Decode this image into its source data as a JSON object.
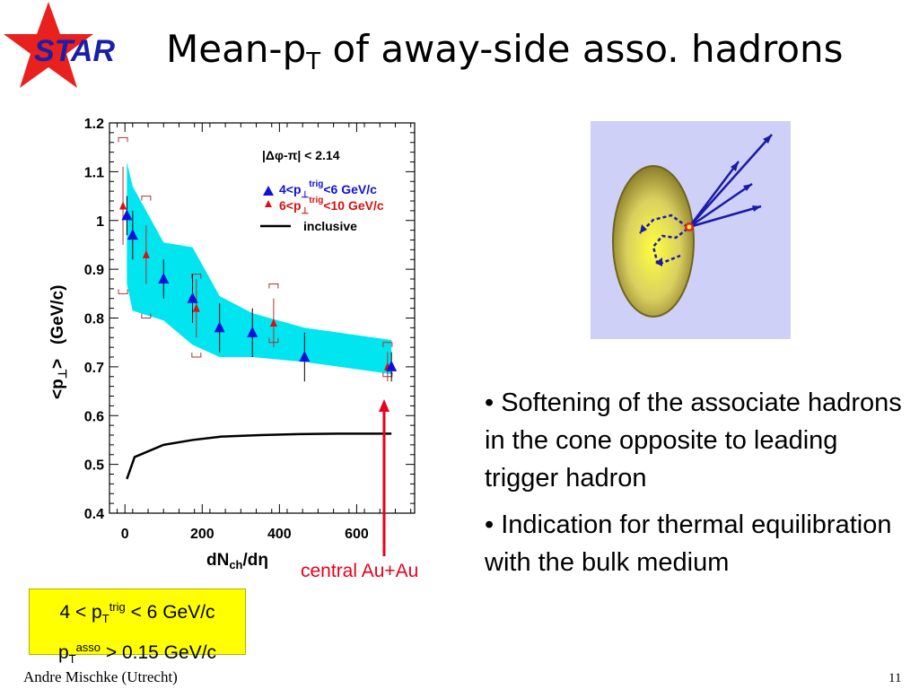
{
  "logo": {
    "text": "STAR",
    "star_color": "#e8201e",
    "text_color": "#1a1fa8"
  },
  "title": {
    "main": "Mean-p",
    "sub": "T",
    "rest": " of away-side asso. hadrons"
  },
  "chart_data": {
    "type": "scatter",
    "xlabel_main": "dN",
    "xlabel_sub": "ch",
    "xlabel_rest": "/dη",
    "ylabel_main": "<p",
    "ylabel_sub": "⊥",
    "ylabel_rest": ">   (GeV/c)",
    "xlim": [
      -40,
      750
    ],
    "ylim": [
      0.4,
      1.2
    ],
    "xticks": [
      0,
      200,
      400,
      600
    ],
    "xtick_labels": [
      "0",
      "200",
      "400",
      "600"
    ],
    "yticks": [
      0.4,
      0.5,
      0.6,
      0.7,
      0.8,
      0.9,
      1.0,
      1.1,
      1.2
    ],
    "ytick_labels": [
      "0.4",
      "0.5",
      "0.6",
      "0.7",
      "0.8",
      "0.9",
      "1",
      "1.1",
      "1.2"
    ],
    "legend_header": "|Δφ-π| < 2.14",
    "series": [
      {
        "name": "4<p⊥trig<6 GeV/c",
        "name_main": "4<p",
        "name_sub": "⊥",
        "name_sup": "trig",
        "name_rest": "<6 GeV/c",
        "color": "#1010d8",
        "marker": "triangle-large",
        "x": [
          5,
          20,
          100,
          175,
          245,
          330,
          465,
          690
        ],
        "y": [
          1.01,
          0.97,
          0.88,
          0.84,
          0.78,
          0.77,
          0.72,
          0.7
        ],
        "err": [
          0.04,
          0.05,
          0.04,
          0.05,
          0.05,
          0.05,
          0.05,
          0.03
        ]
      },
      {
        "name": "6<p⊥trig<10 GeV/c",
        "name_main": "6<p",
        "name_sub": "⊥",
        "name_sup": "trig",
        "name_rest": "<10 GeV/c",
        "color": "#d81010",
        "marker": "triangle-small",
        "x": [
          -5,
          55,
          185,
          385,
          680
        ],
        "y": [
          1.03,
          0.93,
          0.82,
          0.79,
          0.7
        ],
        "err": [
          0.08,
          0.06,
          0.06,
          0.05,
          0.03
        ],
        "sys_lo": [
          0.85,
          0.8,
          0.72,
          0.75,
          0.68
        ],
        "sys_hi": [
          1.17,
          1.05,
          0.89,
          0.87,
          0.75
        ]
      },
      {
        "name": "inclusive",
        "color": "#000000",
        "type": "line",
        "x": [
          5,
          25,
          100,
          175,
          250,
          350,
          450,
          550,
          690
        ],
        "y": [
          0.47,
          0.515,
          0.54,
          0.55,
          0.557,
          0.56,
          0.562,
          0.563,
          0.563
        ]
      }
    ],
    "band": {
      "color": "#00e5f0",
      "x": [
        5,
        20,
        100,
        175,
        245,
        330,
        465,
        690
      ],
      "upper": [
        1.12,
        1.07,
        0.955,
        0.945,
        0.845,
        0.81,
        0.78,
        0.755
      ],
      "lower": [
        0.87,
        0.815,
        0.795,
        0.745,
        0.72,
        0.72,
        0.71,
        0.685
      ]
    }
  },
  "callout": {
    "text": "central Au+Au",
    "color": "#e8001c"
  },
  "diagram": {
    "bg": "#cfd0f7"
  },
  "bullets": [
    "• Softening of the associate hadrons in the cone opposite to leading trigger hadron",
    "• Indication for thermal equilibration with the bulk medium"
  ],
  "note": {
    "line1_main": "4 < p",
    "line1_sub": "T",
    "line1_sup": "trig",
    "line1_rest": " < 6 GeV/c",
    "line2_main": "p",
    "line2_sub": "T",
    "line2_sup": "asso",
    "line2_rest": " > 0.15 GeV/c"
  },
  "footer": {
    "author": "Andre Mischke (Utrecht)",
    "page": "11"
  }
}
